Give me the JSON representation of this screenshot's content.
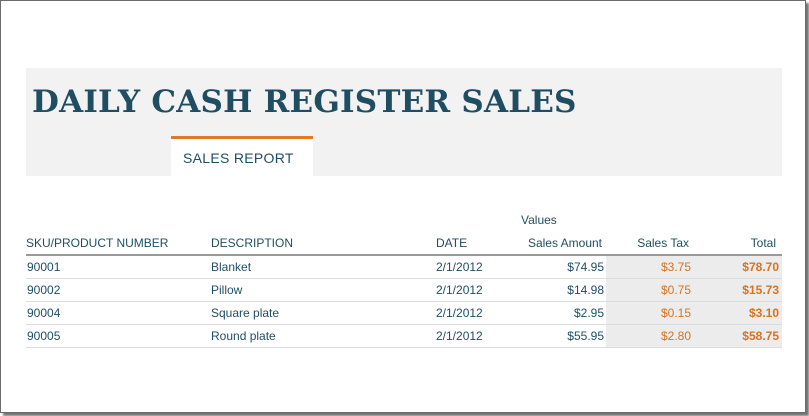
{
  "report": {
    "title": "DAILY CASH REGISTER SALES",
    "tab_label": "SALES REPORT",
    "values_label": "Values"
  },
  "table": {
    "headers": {
      "sku": "SKU/PRODUCT NUMBER",
      "description": "DESCRIPTION",
      "date": "DATE",
      "sales_amount": "Sales Amount",
      "sales_tax": "Sales Tax",
      "total": "Total"
    },
    "rows": [
      {
        "sku": "90001",
        "description": "Blanket",
        "date": "2/1/2012",
        "sales_amount": "$74.95",
        "sales_tax": "$3.75",
        "total": "$78.70"
      },
      {
        "sku": "90002",
        "description": "Pillow",
        "date": "2/1/2012",
        "sales_amount": "$14.98",
        "sales_tax": "$0.75",
        "total": "$15.73"
      },
      {
        "sku": "90004",
        "description": "Square plate",
        "date": "2/1/2012",
        "sales_amount": "$2.95",
        "sales_tax": "$0.15",
        "total": "$3.10"
      },
      {
        "sku": "90005",
        "description": "Round plate",
        "date": "2/1/2012",
        "sales_amount": "$55.95",
        "sales_tax": "$2.80",
        "total": "$58.75"
      }
    ]
  },
  "colors": {
    "heading": "#1f4e63",
    "accent": "#e07b21",
    "banner_bg": "#f2f2f2"
  }
}
